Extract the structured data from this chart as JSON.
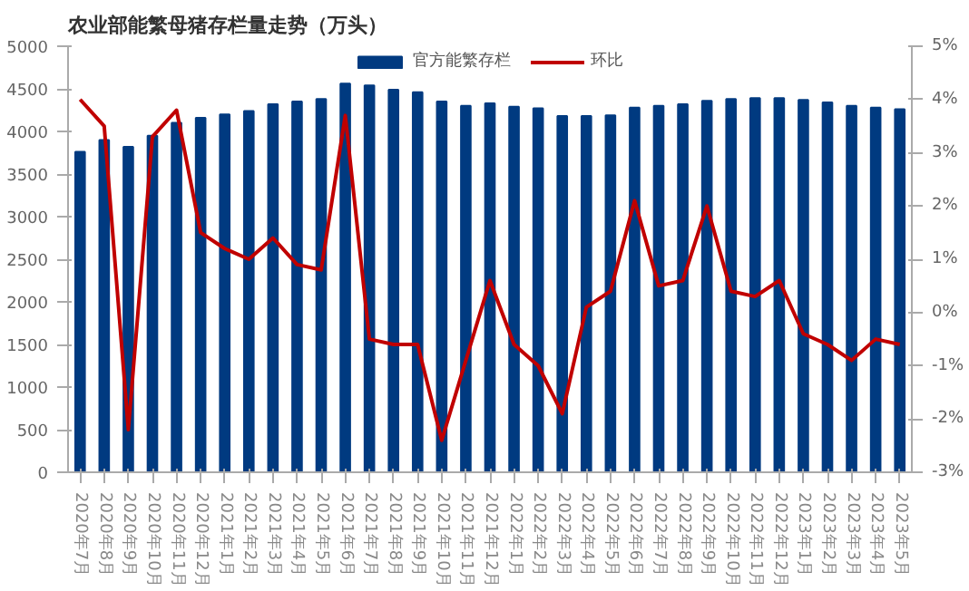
{
  "chart_data": {
    "type": "bar",
    "title": "农业部能繁母猪存栏量走势（万头）",
    "categories": [
      "2020年7月",
      "2020年8月",
      "2020年9月",
      "2020年10月",
      "2020年11月",
      "2020年12月",
      "2021年1月",
      "2021年2月",
      "2021年3月",
      "2021年4月",
      "2021年5月",
      "2021年6月",
      "2021年7月",
      "2021年8月",
      "2021年9月",
      "2021年10月",
      "2021年11月",
      "2021年12月",
      "2022年1月",
      "2022年2月",
      "2022年3月",
      "2022年4月",
      "2022年5月",
      "2022年6月",
      "2022年7月",
      "2022年8月",
      "2022年9月",
      "2022年10月",
      "2022年11月",
      "2022年12月",
      "2023年1月",
      "2023年2月",
      "2023年3月",
      "2023年4月",
      "2023年5月"
    ],
    "series": [
      {
        "name": "官方能繁存栏",
        "color": "#003a80",
        "values": [
          3760,
          3900,
          3820,
          3950,
          4100,
          4160,
          4200,
          4240,
          4320,
          4350,
          4380,
          4560,
          4540,
          4490,
          4460,
          4350,
          4300,
          4330,
          4290,
          4270,
          4180,
          4180,
          4190,
          4280,
          4300,
          4320,
          4360,
          4380,
          4390,
          4390,
          4370,
          4340,
          4300,
          4280,
          4260
        ]
      },
      {
        "name": "环比",
        "type": "line",
        "axis": "y2",
        "color": "#c00000",
        "values": [
          4.0,
          3.5,
          -2.2,
          3.3,
          3.8,
          1.5,
          1.2,
          1.0,
          1.4,
          0.9,
          0.8,
          3.7,
          -0.5,
          -0.6,
          -0.6,
          -2.4,
          -0.9,
          0.6,
          -0.6,
          -1.0,
          -1.9,
          0.1,
          0.4,
          2.1,
          0.5,
          0.6,
          2.0,
          0.4,
          0.3,
          0.6,
          -0.4,
          -0.6,
          -0.9,
          -0.5,
          -0.6
        ]
      }
    ],
    "ylim": [
      0,
      5000
    ],
    "yticks": [
      0,
      500,
      1000,
      1500,
      2000,
      2500,
      3000,
      3500,
      4000,
      4500,
      5000
    ],
    "y2lim": [
      -3,
      5
    ],
    "y2ticks": [
      {
        "value": -3,
        "label": "-3%"
      },
      {
        "value": -2,
        "label": "-2%"
      },
      {
        "value": -1,
        "label": "-1%"
      },
      {
        "value": 0,
        "label": "0%"
      },
      {
        "value": 1,
        "label": "1%"
      },
      {
        "value": 2,
        "label": "2%"
      },
      {
        "value": 3,
        "label": "3%"
      },
      {
        "value": 4,
        "label": "4%"
      },
      {
        "value": 5,
        "label": "5%"
      }
    ],
    "legend": "top",
    "grid": false
  }
}
